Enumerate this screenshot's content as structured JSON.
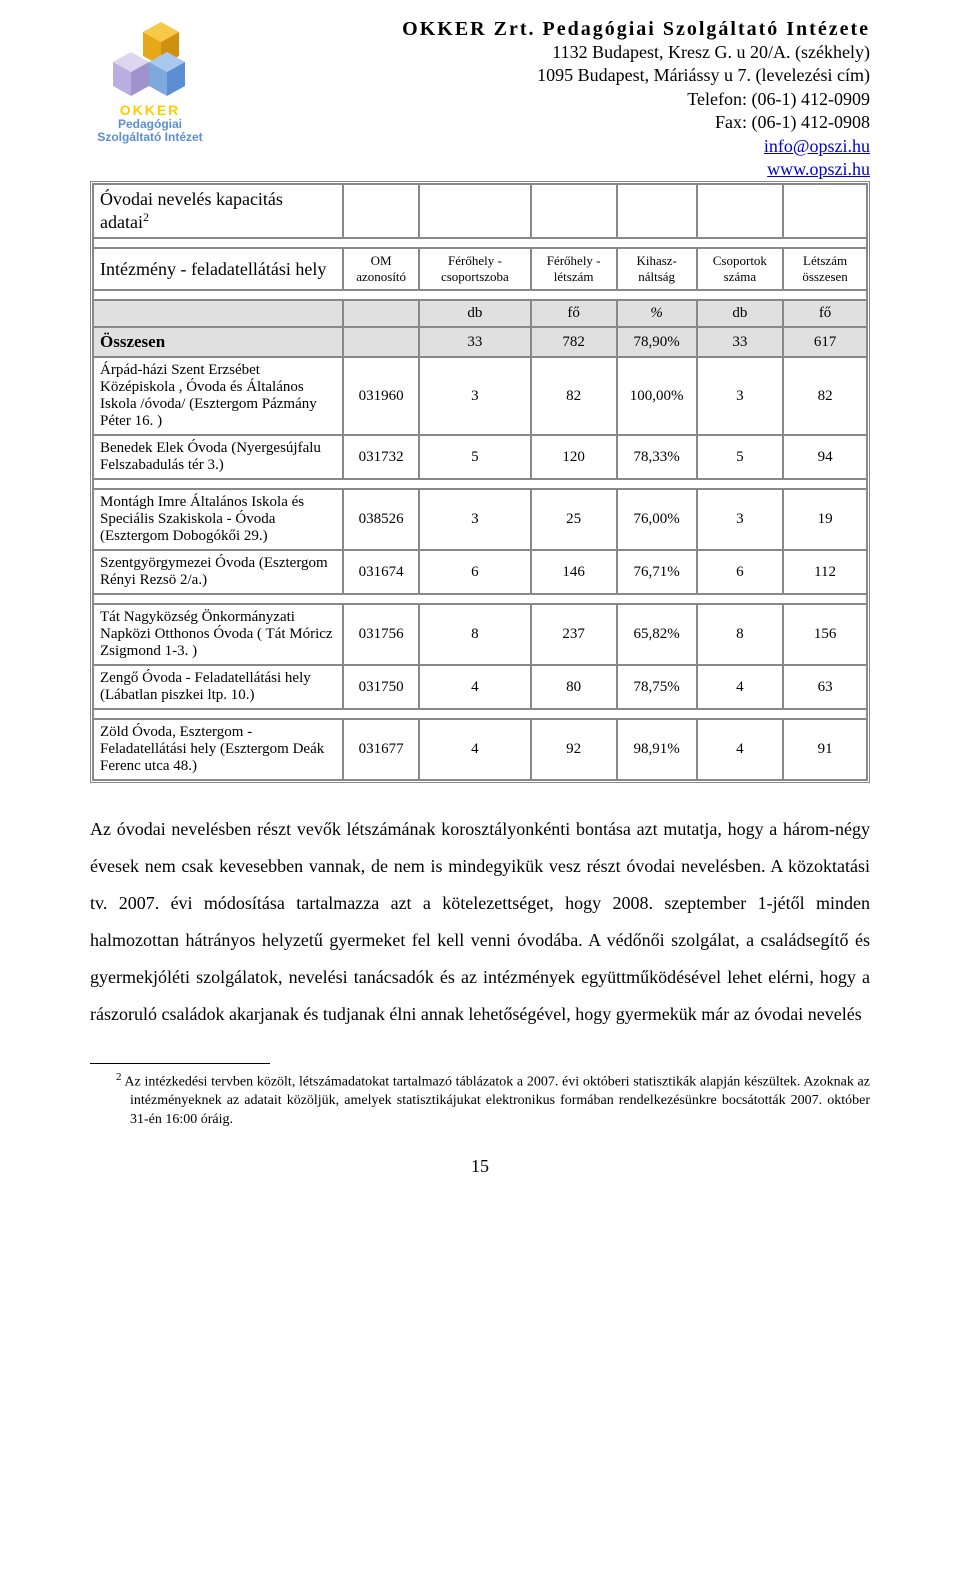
{
  "header": {
    "title": "OKKER Zrt. Pedagógiai Szolgáltató Intézete",
    "addr1": "1132 Budapest, Kresz G. u 20/A. (székhely)",
    "addr2": "1095 Budapest, Máriássy u 7. (levelezési cím)",
    "tel": "Telefon: (06-1) 412-0909",
    "fax": "Fax: (06-1) 412-0908",
    "email": "info@opszi.hu",
    "www": "www.opszi.hu",
    "logo_okker": "OKKER",
    "logo_sub1": "Pedagógiai",
    "logo_sub2": "Szolgáltató Intézet"
  },
  "table": {
    "caption": "Óvodai nevelés kapacitás adatai",
    "caption_sup": "2",
    "intezmeny_label": "Intézmény - feladatellátási hely",
    "headers": [
      "OM azonosító",
      "Férőhely - csoportszoba",
      "Férőhely - létszám",
      "Kihasz-náltság",
      "Csoportok száma",
      "Létszám összesen"
    ],
    "units": [
      "db",
      "fő",
      "%",
      "db",
      "fő"
    ],
    "osszesen_label": "Összesen",
    "osszesen": [
      "",
      "33",
      "782",
      "78,90%",
      "33",
      "617"
    ],
    "rows": [
      {
        "name": "Árpád-házi Szent Erzsébet Középiskola , Óvoda és Általános Iskola /óvoda/ (Esztergom Pázmány Péter 16. )",
        "c": [
          "031960",
          "3",
          "82",
          "100,00%",
          "3",
          "82"
        ]
      },
      {
        "name": "Benedek Elek Óvoda (Nyergesújfalu Felszabadulás tér 3.)",
        "c": [
          "031732",
          "5",
          "120",
          "78,33%",
          "5",
          "94"
        ]
      }
    ],
    "rows2": [
      {
        "name": "Montágh Imre Általános Iskola és Speciális Szakiskola - Óvoda (Esztergom Dobogókői 29.)",
        "c": [
          "038526",
          "3",
          "25",
          "76,00%",
          "3",
          "19"
        ]
      },
      {
        "name": "Szentgyörgymezei Óvoda (Esztergom Rényi Rezsö 2/a.)",
        "c": [
          "031674",
          "6",
          "146",
          "76,71%",
          "6",
          "112"
        ]
      }
    ],
    "rows3": [
      {
        "name": "Tát Nagyközség Önkormányzati Napközi Otthonos Óvoda ( Tát Móricz Zsigmond 1-3. )",
        "c": [
          "031756",
          "8",
          "237",
          "65,82%",
          "8",
          "156"
        ]
      },
      {
        "name": "Zengő Óvoda - Feladatellátási hely (Lábatlan piszkei ltp. 10.)",
        "c": [
          "031750",
          "4",
          "80",
          "78,75%",
          "4",
          "63"
        ]
      }
    ],
    "rows4": [
      {
        "name": "Zöld Óvoda, Esztergom - Feladatellátási hely (Esztergom Deák Ferenc utca 48.)",
        "c": [
          "031677",
          "4",
          "92",
          "98,91%",
          "4",
          "91"
        ]
      }
    ]
  },
  "paragraph": "Az óvodai nevelésben részt vevők létszámának korosztályonkénti bontása azt mutatja, hogy a három-négy évesek nem csak kevesebben vannak, de nem is mindegyikük vesz részt óvodai nevelésben. A közoktatási tv. 2007. évi módosítása tartalmazza azt a kötelezettséget, hogy 2008. szeptember 1-jétől minden halmozottan hátrányos helyzetű gyermeket fel kell venni óvodába. A védőnői szolgálat, a családsegítő és gyermekjóléti szolgálatok, nevelési tanácsadók és az intézmények együttműködésével lehet elérni, hogy a rászoruló családok akarjanak és tudjanak élni annak lehetőségével, hogy gyermekük már az óvodai nevelés",
  "footnote": {
    "sup": "2",
    "text": " Az intézkedési tervben közölt, létszámadatokat tartalmazó táblázatok a 2007. évi októberi statisztikák alapján készültek. Azoknak az intézményeknek az adatait közöljük, amelyek statisztikájukat elektronikus formában rendelkezésünkre bocsátották 2007. október 31-én 16:00 óráig."
  },
  "page_number": "15",
  "logo_colors": {
    "gold": "#f4b400",
    "blue": "#6fa8dc",
    "lav": "#c9c0e0"
  }
}
